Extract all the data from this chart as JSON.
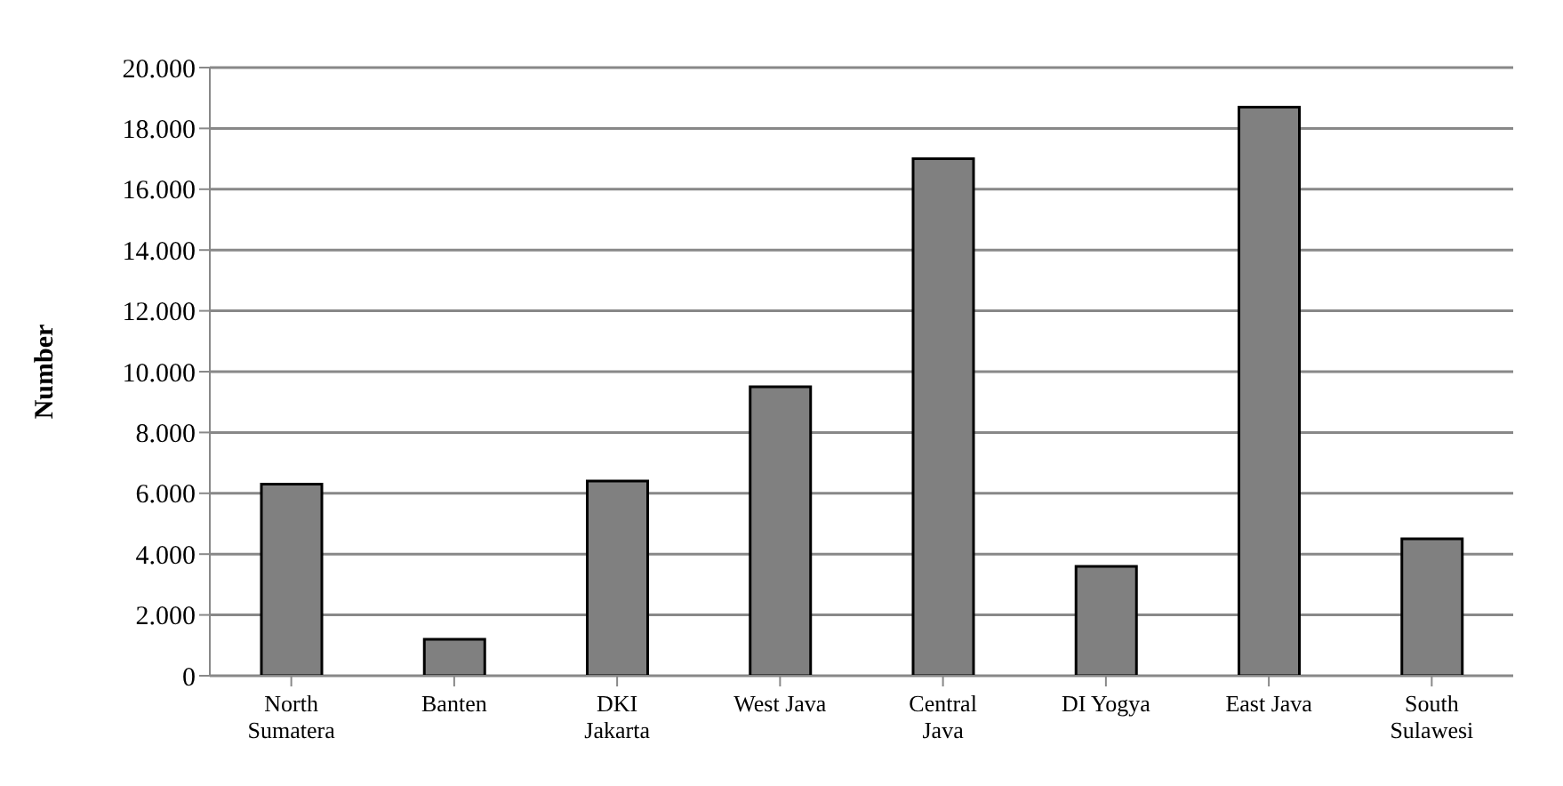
{
  "chart_data": {
    "type": "bar",
    "ylabel": "Number",
    "categories": [
      "North Sumatera",
      "Banten",
      "DKI Jakarta",
      "West Java",
      "Central Java",
      "DI Yogya",
      "East Java",
      "South Sulawesi"
    ],
    "values": [
      6300,
      1200,
      6400,
      9500,
      17000,
      3600,
      18700,
      4500
    ],
    "color": "#808080",
    "ylim": [
      0,
      20000
    ],
    "yticks": [
      {
        "value": 0,
        "label": "0"
      },
      {
        "value": 2000,
        "label": "2.000"
      },
      {
        "value": 4000,
        "label": "4.000"
      },
      {
        "value": 6000,
        "label": "6.000"
      },
      {
        "value": 8000,
        "label": "8.000"
      },
      {
        "value": 10000,
        "label": "10.000"
      },
      {
        "value": 12000,
        "label": "12.000"
      },
      {
        "value": 14000,
        "label": "14.000"
      },
      {
        "value": 16000,
        "label": "16.000"
      },
      {
        "value": 18000,
        "label": "18.000"
      },
      {
        "value": 20000,
        "label": "20.000"
      }
    ],
    "grid": "y",
    "legend": false
  }
}
